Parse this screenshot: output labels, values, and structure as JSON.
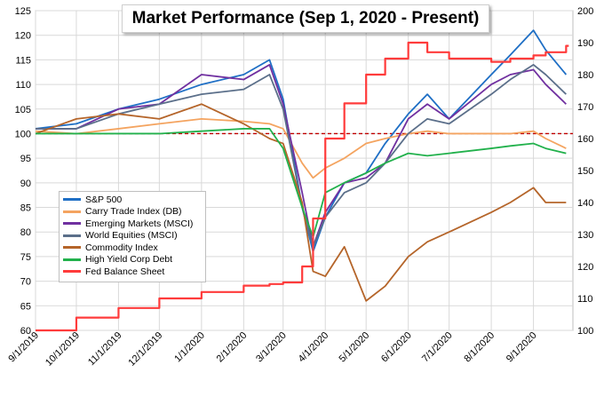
{
  "chart_data": {
    "type": "line",
    "title": "Market Performance (Sep 1, 2020 - Present)",
    "x_ticks": [
      "9/1/2019",
      "10/1/2019",
      "11/1/2019",
      "12/1/2019",
      "1/1/2020",
      "2/1/2020",
      "3/1/2020",
      "4/1/2020",
      "5/1/2020",
      "6/1/2020",
      "7/1/2020",
      "8/1/2020",
      "9/1/2020"
    ],
    "xlim": [
      "2019-09-01",
      "2020-09-30"
    ],
    "ylim_left": [
      60,
      125
    ],
    "yticks_left": [
      60,
      65,
      70,
      75,
      80,
      85,
      90,
      95,
      100,
      105,
      110,
      115,
      120,
      125
    ],
    "ylim_right": [
      100,
      200
    ],
    "yticks_right": [
      100,
      110,
      120,
      130,
      140,
      150,
      160,
      170,
      180,
      190,
      200
    ],
    "reference_line": {
      "value": 100,
      "axis": "left",
      "style": "dashed",
      "color": "#c00000"
    },
    "grid": true,
    "legend_position": "center-left",
    "x": [
      "2019-09-01",
      "2019-10-01",
      "2019-11-01",
      "2019-12-01",
      "2020-01-01",
      "2020-02-01",
      "2020-02-20",
      "2020-03-01",
      "2020-03-15",
      "2020-03-23",
      "2020-04-01",
      "2020-04-15",
      "2020-05-01",
      "2020-05-15",
      "2020-06-01",
      "2020-06-15",
      "2020-07-01",
      "2020-08-01",
      "2020-08-15",
      "2020-09-01",
      "2020-09-10",
      "2020-09-25"
    ],
    "series": [
      {
        "name": "S&P 500",
        "axis": "left",
        "color": "#1f6fc5",
        "values": [
          101,
          102,
          105,
          107,
          110,
          112,
          115,
          107,
          85,
          76,
          83,
          90,
          92,
          98,
          104,
          108,
          103,
          112,
          116,
          121,
          117,
          112
        ]
      },
      {
        "name": "Carry Trade Index (DB)",
        "axis": "left",
        "color": "#f4a460",
        "values": [
          100.5,
          100,
          101,
          102,
          103,
          102.5,
          102,
          101,
          94,
          91,
          93,
          95,
          98,
          99,
          100,
          100.5,
          100,
          100,
          100,
          100.5,
          99,
          97
        ]
      },
      {
        "name": "Emerging Markets (MSCI)",
        "axis": "left",
        "color": "#7030a0",
        "values": [
          101,
          101,
          105,
          106,
          112,
          111,
          114,
          106,
          88,
          77,
          84,
          90,
          91,
          94,
          103,
          106,
          103,
          110,
          112,
          113,
          110,
          106
        ]
      },
      {
        "name": "World Equities (MSCI)",
        "axis": "left",
        "color": "#5b6f8a",
        "values": [
          101,
          101,
          104,
          106,
          108,
          109,
          112,
          105,
          85,
          77,
          83,
          88,
          90,
          94,
          100,
          103,
          102,
          108,
          111,
          114,
          112,
          108
        ]
      },
      {
        "name": "Commodity Index",
        "axis": "left",
        "color": "#b5652a",
        "values": [
          100,
          103,
          104,
          103,
          106,
          102,
          99,
          98,
          86,
          72,
          71,
          77,
          66,
          69,
          75,
          78,
          80,
          84,
          86,
          89,
          86,
          86
        ]
      },
      {
        "name": "High Yield Corp Debt",
        "axis": "left",
        "color": "#22b14c",
        "values": [
          100,
          100,
          100,
          100,
          100.5,
          101,
          101,
          97,
          85,
          79,
          88,
          90,
          92,
          94,
          96,
          95.5,
          96,
          97,
          97.5,
          98,
          97,
          96
        ]
      },
      {
        "name": "Fed Balance Sheet",
        "axis": "right",
        "color": "#ff3b3b",
        "values": [
          100,
          104,
          107,
          110,
          112,
          114,
          114.5,
          115,
          120,
          135,
          160,
          171,
          180,
          185,
          190,
          187,
          185,
          184,
          185,
          186,
          187,
          189
        ]
      }
    ]
  }
}
